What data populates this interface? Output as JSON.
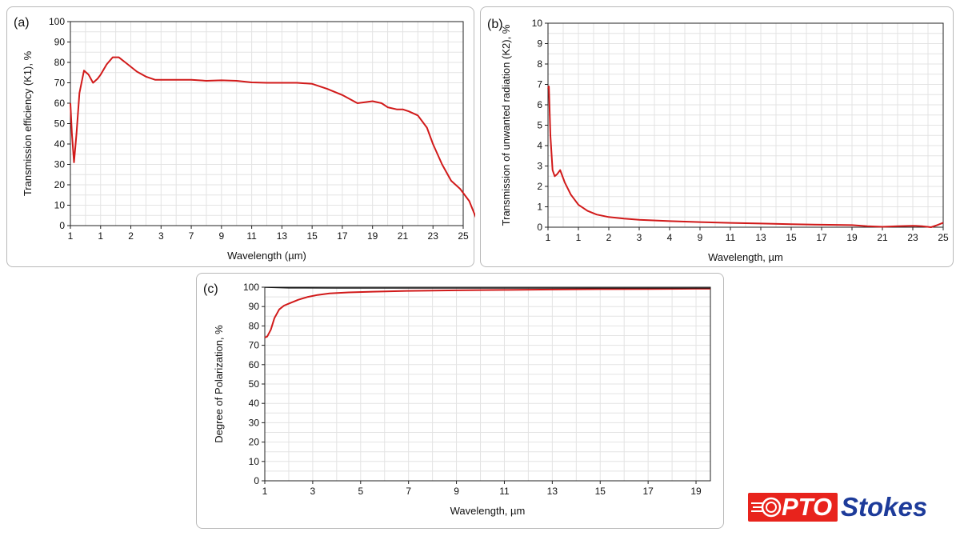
{
  "chart_data": [
    {
      "type": "line",
      "panel_label": "(a)",
      "xlabel": "Wavelength (µm)",
      "ylabel": "Transmission efficiency (K1), %",
      "x_tick_labels": [
        "1",
        "1",
        "2",
        "3",
        "7",
        "9",
        "11",
        "13",
        "15",
        "17",
        "19",
        "21",
        "23",
        "25"
      ],
      "ylim": [
        0,
        100
      ],
      "y_ticks": [
        0,
        10,
        20,
        30,
        40,
        50,
        60,
        70,
        80,
        90,
        100
      ],
      "grid": true,
      "series": [
        {
          "color": "#d11a1a",
          "x_index": [
            0,
            0.05,
            0.12,
            0.2,
            0.3,
            0.45,
            0.6,
            0.75,
            0.9,
            1.0,
            1.2,
            1.4,
            1.6,
            1.9,
            2.2,
            2.5,
            2.8,
            3.0,
            3.5,
            4.0,
            4.5,
            5.0,
            5.5,
            6.0,
            6.5,
            7.0,
            7.5,
            8.0,
            8.5,
            9.0,
            9.5,
            10.0,
            10.3,
            10.5,
            10.8,
            11.0,
            11.2,
            11.5,
            11.8,
            12.0,
            12.3,
            12.6,
            12.9,
            13.2,
            13.5,
            14.0
          ],
          "y": [
            60,
            45,
            31,
            45,
            65,
            76,
            74,
            70,
            72,
            74,
            79,
            82.5,
            82.5,
            79,
            75.5,
            73,
            71.5,
            71.5,
            71.5,
            71.5,
            71,
            71.2,
            71,
            70.2,
            70,
            70,
            70,
            69.5,
            67,
            64,
            60,
            61,
            60,
            58,
            57,
            57,
            56,
            54,
            48,
            40,
            30,
            22,
            18,
            12,
            1,
            0
          ]
        }
      ]
    },
    {
      "type": "line",
      "panel_label": "(b)",
      "xlabel": "Wavelength, µm",
      "ylabel": "Transmission of unwanted radiation (K2), %",
      "x_tick_labels": [
        "1",
        "1",
        "2",
        "3",
        "4",
        "9",
        "11",
        "13",
        "15",
        "17",
        "19",
        "21",
        "23",
        "25"
      ],
      "ylim": [
        0,
        10
      ],
      "y_ticks": [
        0,
        1,
        2,
        3,
        4,
        5,
        6,
        7,
        8,
        9,
        10
      ],
      "grid": true,
      "series": [
        {
          "color": "#d11a1a",
          "x_index": [
            0,
            0.03,
            0.08,
            0.15,
            0.22,
            0.3,
            0.4,
            0.55,
            0.75,
            1.0,
            1.3,
            1.6,
            2.0,
            2.5,
            3.0,
            4.0,
            5.0,
            6.0,
            7.0,
            8.0,
            9.0,
            10.0,
            10.5,
            11.0,
            11.5,
            12.0,
            12.3,
            12.6,
            12.8,
            13.0
          ],
          "y": [
            6.8,
            6.9,
            4.5,
            2.8,
            2.5,
            2.6,
            2.8,
            2.2,
            1.6,
            1.1,
            0.8,
            0.62,
            0.5,
            0.42,
            0.36,
            0.3,
            0.25,
            0.21,
            0.18,
            0.15,
            0.12,
            0.1,
            0.05,
            0.02,
            0.05,
            0.07,
            0.05,
            0.0,
            0.1,
            0.22
          ]
        }
      ]
    },
    {
      "type": "line",
      "panel_label": "(c)",
      "xlabel": "Wavelength, µm",
      "ylabel": "Degree of Polarization, %",
      "x_ticks": [
        1,
        3,
        5,
        7,
        9,
        11,
        13,
        15,
        17,
        19
      ],
      "xlim": [
        1,
        19.6
      ],
      "ylim": [
        0,
        100
      ],
      "y_ticks": [
        0,
        10,
        20,
        30,
        40,
        50,
        60,
        70,
        80,
        90,
        100
      ],
      "grid": true,
      "series": [
        {
          "color": "#d11a1a",
          "x": [
            1.0,
            1.1,
            1.25,
            1.4,
            1.6,
            1.8,
            2.0,
            2.4,
            2.8,
            3.2,
            3.7,
            4.5,
            5.5,
            7.0,
            9.0,
            11.0,
            13.0,
            15.0,
            17.0,
            19.0,
            19.6
          ],
          "y": [
            74,
            74.5,
            78,
            84,
            88.5,
            90.5,
            91.5,
            93.5,
            95,
            96,
            96.8,
            97.3,
            97.7,
            98.1,
            98.4,
            98.6,
            98.8,
            99.0,
            99.1,
            99.2,
            99.2
          ]
        },
        {
          "color": "#111111",
          "x": [
            1.0,
            2.0,
            4.0,
            7.0,
            10.0,
            13.0,
            16.0,
            19.6
          ],
          "y": [
            99.9,
            99.6,
            99.5,
            99.5,
            99.5,
            99.5,
            99.5,
            99.5
          ]
        }
      ]
    }
  ],
  "logo": {
    "part1": "PTO",
    "part2": "Stokes"
  }
}
